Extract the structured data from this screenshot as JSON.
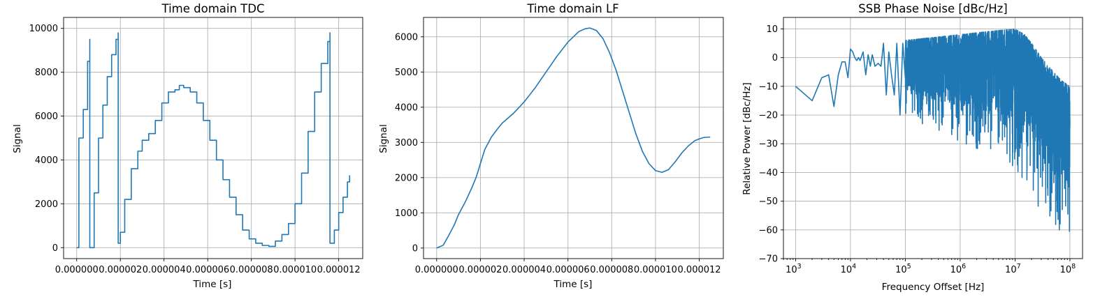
{
  "chart_data": [
    {
      "type": "line",
      "title": "Time domain TDC",
      "xlabel": "Time [s]",
      "ylabel": "Signal",
      "xlim": [
        -6e-07,
        1.31e-05
      ],
      "ylim": [
        -500,
        10500
      ],
      "grid": true,
      "x_ticks": [
        0,
        2e-06,
        4e-06,
        6e-06,
        8e-06,
        1e-05,
        1.2e-05
      ],
      "x_tick_labels": [
        "0.000000",
        "0.000002",
        "0.000004",
        "0.000006",
        "0.000008",
        "0.000010",
        "0.000012"
      ],
      "y_ticks": [
        0,
        2000,
        4000,
        6000,
        8000,
        10000
      ],
      "y_tick_labels": [
        "0",
        "2000",
        "4000",
        "6000",
        "8000",
        "10000"
      ],
      "series": [
        {
          "step": true,
          "x": [
            0,
            1e-07,
            3e-07,
            5e-07,
            6e-07,
            6e-07,
            8e-07,
            1e-06,
            1.2e-06,
            1.4e-06,
            1.6e-06,
            1.8e-06,
            1.9e-06,
            1.9e-06,
            2e-06,
            2.2e-06,
            2.5e-06,
            2.8e-06,
            3e-06,
            3.3e-06,
            3.6e-06,
            3.9e-06,
            4.2e-06,
            4.5e-06,
            4.7e-06,
            4.9e-06,
            5.2e-06,
            5.5e-06,
            5.8e-06,
            6.1e-06,
            6.4e-06,
            6.7e-06,
            7e-06,
            7.3e-06,
            7.6e-06,
            7.9e-06,
            8.2e-06,
            8.5e-06,
            8.8e-06,
            9.1e-06,
            9.4e-06,
            9.7e-06,
            1e-05,
            1.03e-05,
            1.06e-05,
            1.09e-05,
            1.12e-05,
            1.15e-05,
            1.16e-05,
            1.16e-05,
            1.18e-05,
            1.2e-05,
            1.22e-05,
            1.24e-05,
            1.25e-05
          ],
          "y": [
            0,
            5000,
            6300,
            8500,
            9500,
            0,
            2500,
            5000,
            6500,
            7800,
            8800,
            9500,
            9800,
            200,
            700,
            2200,
            3600,
            4400,
            4900,
            5200,
            5800,
            6600,
            7100,
            7200,
            7400,
            7300,
            7100,
            6600,
            5800,
            4900,
            4000,
            3100,
            2300,
            1500,
            800,
            400,
            200,
            100,
            60,
            300,
            600,
            1100,
            2000,
            3400,
            5300,
            7100,
            8400,
            9400,
            9800,
            200,
            800,
            1600,
            2300,
            3000,
            3300
          ]
        }
      ]
    },
    {
      "type": "line",
      "title": "Time domain LF",
      "xlabel": "Time [s]",
      "ylabel": "Signal",
      "xlim": [
        -6e-07,
        1.31e-05
      ],
      "ylim": [
        -300,
        6550
      ],
      "grid": true,
      "x_ticks": [
        0,
        2e-06,
        4e-06,
        6e-06,
        8e-06,
        1e-05,
        1.2e-05
      ],
      "x_tick_labels": [
        "0.000000",
        "0.000002",
        "0.000004",
        "0.000006",
        "0.000008",
        "0.000010",
        "0.000012"
      ],
      "y_ticks": [
        0,
        1000,
        2000,
        3000,
        4000,
        5000,
        6000
      ],
      "y_tick_labels": [
        "0",
        "1000",
        "2000",
        "3000",
        "4000",
        "5000",
        "6000"
      ],
      "series": [
        {
          "x": [
            0,
            3e-07,
            5e-07,
            8e-07,
            1e-06,
            1.3e-06,
            1.6e-06,
            1.8e-06,
            2e-06,
            2.2e-06,
            2.5e-06,
            2.8e-06,
            3e-06,
            3.5e-06,
            4e-06,
            4.5e-06,
            5e-06,
            5.5e-06,
            6e-06,
            6.5e-06,
            6.8e-06,
            7e-06,
            7.3e-06,
            7.6e-06,
            7.9e-06,
            8.2e-06,
            8.5e-06,
            8.8e-06,
            9.1e-06,
            9.4e-06,
            9.7e-06,
            1e-05,
            1.03e-05,
            1.06e-05,
            1.09e-05,
            1.12e-05,
            1.15e-05,
            1.18e-05,
            1.2e-05,
            1.22e-05,
            1.24e-05,
            1.25e-05
          ],
          "y": [
            0,
            80,
            300,
            650,
            950,
            1300,
            1700,
            2000,
            2400,
            2800,
            3150,
            3400,
            3550,
            3820,
            4150,
            4550,
            5000,
            5450,
            5850,
            6150,
            6230,
            6250,
            6180,
            5950,
            5550,
            5050,
            4450,
            3850,
            3250,
            2750,
            2400,
            2200,
            2150,
            2230,
            2450,
            2700,
            2900,
            3050,
            3100,
            3140,
            3150,
            3150
          ]
        }
      ]
    },
    {
      "type": "line",
      "title": "SSB Phase Noise [dBc/Hz]",
      "xlabel": "Frequency Offset [Hz]",
      "ylabel": "Relative Power [dBc/Hz]",
      "xscale": "log",
      "xlim": [
        600,
        170000000
      ],
      "ylim": [
        -70,
        14
      ],
      "grid": true,
      "x_ticks": [
        1000,
        10000,
        100000,
        1000000,
        10000000,
        100000000
      ],
      "x_tick_labels": [
        "10",
        "10",
        "10",
        "10",
        "10",
        "10"
      ],
      "x_tick_exponents": [
        "3",
        "4",
        "5",
        "6",
        "7",
        "8"
      ],
      "y_ticks": [
        -70,
        -60,
        -50,
        -40,
        -30,
        -20,
        -10,
        0,
        10
      ],
      "y_tick_labels": [
        "−70",
        "−60",
        "−50",
        "−40",
        "−30",
        "−20",
        "−10",
        "0",
        "10"
      ],
      "series": [
        {
          "x": [
            1000,
            2000,
            3000,
            4000,
            5000,
            6000,
            7000,
            8000,
            9000,
            10000,
            11000,
            12000,
            13000,
            14000,
            15000,
            17000,
            19000,
            21000,
            23000,
            25000,
            28000,
            32000,
            36000,
            40000,
            45000,
            50000,
            56000,
            63000,
            70000,
            80000,
            90000,
            100000
          ],
          "y": [
            -10,
            -15,
            -7,
            -6,
            -17,
            -6,
            -1.5,
            -1.5,
            -7,
            3,
            2,
            0,
            -1,
            0,
            -1,
            2,
            -6,
            1,
            -3,
            1,
            -3,
            -2,
            -3,
            5,
            -13,
            2,
            -6,
            -13,
            5,
            -20,
            5,
            -7
          ]
        },
        {
          "x_range": [
            100000,
            100000000
          ],
          "points": 2600,
          "upper_envelope_x": [
            100000,
            1000000,
            3000000,
            10000000,
            15000000,
            20000000,
            30000000,
            50000000,
            70000000,
            100000000
          ],
          "upper_envelope_y": [
            6,
            8,
            9,
            10,
            8,
            5,
            0,
            -5,
            -8,
            -10
          ],
          "lower_envelope_x": [
            100000,
            1000000,
            5000000,
            10000000,
            20000000,
            30000000,
            50000000,
            70000000,
            100000000
          ],
          "lower_envelope_y": [
            -20,
            -30,
            -35,
            -40,
            -45,
            -55,
            -60,
            -62,
            -65
          ]
        }
      ]
    }
  ]
}
